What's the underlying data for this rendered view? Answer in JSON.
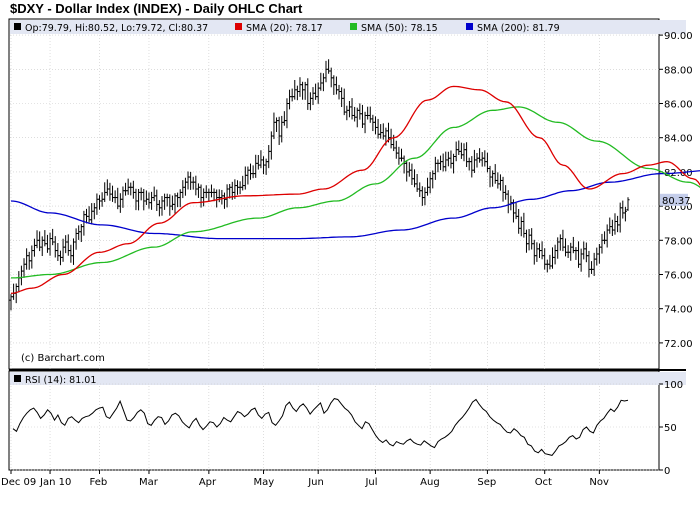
{
  "title": "$DXY - Dollar Index (INDEX) - Daily OHLC Chart",
  "watermark": "(c) Barchart.com",
  "legend": {
    "ohlc": "Op:79.79, Hi:80.52, Lo:79.72, Cl:80.37",
    "sma20": "SMA (20): 78.17",
    "sma50": "SMA (50): 78.15",
    "sma200": "SMA (200): 81.79",
    "rsi": "RSI (14): 81.01"
  },
  "colors": {
    "price": "#000000",
    "sma20": "#dd0000",
    "sma50": "#22bb22",
    "sma200": "#0000cc",
    "last_price_box": "#c4cdea",
    "legend_bar": "#e3e7f3"
  },
  "last_price_label": "80.37",
  "chart_data": [
    {
      "type": "ohlc",
      "title": "$DXY - Dollar Index (INDEX) - Daily OHLC Chart",
      "x_labels": [
        "Dec 09",
        "Jan 10",
        "Feb",
        "Mar",
        "Apr",
        "May",
        "Jun",
        "Jul",
        "Aug",
        "Sep",
        "Oct",
        "Nov"
      ],
      "ylim": [
        71,
        91
      ],
      "y_ticks": [
        "90.00",
        "88.00",
        "86.00",
        "84.00",
        "82.00",
        "80.00",
        "78.00",
        "76.00",
        "74.00",
        "72.00"
      ],
      "grid": true,
      "close_series": [
        {
          "month": "Dec 09",
          "values": [
            74.7,
            74.9,
            75.3,
            75.8,
            76.2,
            76.6,
            77.1,
            76.8,
            77.4,
            77.7,
            78.0,
            77.6,
            78.0,
            77.8,
            77.5
          ]
        },
        {
          "month": "Jan 10",
          "values": [
            78.1,
            77.9,
            77.4,
            77.1,
            77.0,
            77.6,
            77.9,
            77.4,
            77.1,
            77.9,
            78.4,
            78.5,
            78.8,
            79.5,
            79.4,
            79.2,
            79.7,
            79.9,
            80.4
          ]
        },
        {
          "month": "Feb",
          "values": [
            80.3,
            80.4,
            80.8,
            81.0,
            80.7,
            80.5,
            80.5,
            80.0,
            80.4,
            80.9,
            80.9,
            81.1,
            81.1,
            80.8,
            80.3,
            80.8,
            80.8,
            80.3,
            80.4
          ]
        },
        {
          "month": "Mar",
          "values": [
            80.2,
            80.5,
            80.6,
            80.1,
            79.9,
            80.3,
            80.5,
            80.5,
            80.0,
            80.1,
            80.6,
            80.5,
            80.8,
            81.1,
            81.4,
            81.7,
            81.4,
            81.4,
            81.0,
            81.1,
            80.5,
            80.8,
            80.8
          ]
        },
        {
          "month": "Apr",
          "values": [
            80.8,
            80.8,
            80.8,
            80.5,
            80.5,
            80.6,
            80.4,
            81.0,
            81.1,
            80.8,
            81.2,
            81.1,
            81.1,
            81.2,
            81.8,
            82.1,
            81.9,
            81.9,
            82.5,
            82.4,
            82.7
          ]
        },
        {
          "month": "May",
          "values": [
            82.4,
            82.6,
            83.2,
            84.1,
            84.9,
            85.0,
            84.1,
            84.9,
            85.0,
            86.0,
            86.4,
            86.4,
            86.8,
            86.7,
            87.1,
            86.8,
            87.1,
            86.0,
            86.3,
            86.6,
            86.4
          ]
        },
        {
          "month": "Jun",
          "values": [
            86.9,
            87.2,
            87.5,
            88.0,
            87.9,
            87.5,
            87.1,
            86.8,
            86.7,
            86.3,
            85.5,
            85.6,
            85.8,
            85.3,
            85.2,
            85.6,
            85.4,
            84.8,
            85.3,
            85.3,
            85.1,
            84.9
          ]
        },
        {
          "month": "Jul",
          "values": [
            84.6,
            84.2,
            84.3,
            84.1,
            84.4,
            84.0,
            83.6,
            83.4,
            83.1,
            82.8,
            82.8,
            82.5,
            82.0,
            82.1,
            81.6,
            81.3,
            81.0,
            80.9,
            80.5,
            80.8,
            81.1
          ]
        },
        {
          "month": "Aug",
          "values": [
            81.6,
            81.9,
            82.5,
            82.5,
            82.6,
            82.3,
            82.7,
            82.8,
            82.5,
            82.9,
            83.3,
            83.2,
            83.0,
            83.3,
            82.6,
            82.6,
            82.1,
            82.7,
            82.8,
            82.7,
            82.8,
            82.6
          ]
        },
        {
          "month": "Sep",
          "values": [
            82.2,
            81.7,
            81.9,
            81.5,
            81.3,
            81.5,
            80.8,
            80.7,
            80.1,
            80.2,
            79.6,
            79.4,
            78.7,
            79.1,
            78.4,
            77.8,
            78.3,
            77.8,
            77.1,
            77.5,
            77.4,
            77.1
          ]
        },
        {
          "month": "Oct",
          "values": [
            76.6,
            76.6,
            76.5,
            77.0,
            77.4,
            77.9,
            78.1,
            77.6,
            77.3,
            77.3,
            77.6,
            77.4,
            77.4,
            76.6,
            77.2,
            77.5,
            77.1,
            76.3,
            76.3,
            76.9,
            77.2
          ]
        },
        {
          "month": "Nov",
          "values": [
            77.6,
            78.0,
            78.0,
            78.6,
            78.8,
            78.6,
            79.1,
            78.9,
            79.9,
            79.6,
            79.7,
            80.37
          ]
        }
      ],
      "last_bar": {
        "open": 79.79,
        "high": 80.52,
        "low": 79.72,
        "close": 80.37
      },
      "series": [
        {
          "name": "SMA (20)",
          "color": "#dd0000",
          "points": [
            [
              0,
              74.9
            ],
            [
              8,
              75.2
            ],
            [
              20,
              76.0
            ],
            [
              34,
              77.3
            ],
            [
              45,
              77.8
            ],
            [
              57,
              79.0
            ],
            [
              70,
              80.2
            ],
            [
              90,
              80.6
            ],
            [
              110,
              80.7
            ],
            [
              120,
              81.0
            ],
            [
              135,
              82.1
            ],
            [
              147,
              84.0
            ],
            [
              160,
              86.2
            ],
            [
              170,
              87.0
            ],
            [
              180,
              86.8
            ],
            [
              190,
              86.1
            ],
            [
              203,
              84.0
            ],
            [
              212,
              82.4
            ],
            [
              222,
              81.0
            ],
            [
              235,
              81.9
            ],
            [
              245,
              82.4
            ],
            [
              252,
              82.6
            ],
            [
              262,
              81.6
            ],
            [
              272,
              79.5
            ],
            [
              283,
              77.8
            ],
            [
              293,
              77.2
            ],
            [
              303,
              77.0
            ],
            [
              312,
              77.4
            ],
            [
              323,
              78.17
            ]
          ]
        },
        {
          "name": "SMA (50)",
          "color": "#22bb22",
          "points": [
            [
              0,
              75.8
            ],
            [
              15,
              76.0
            ],
            [
              35,
              76.7
            ],
            [
              55,
              77.6
            ],
            [
              70,
              78.5
            ],
            [
              95,
              79.3
            ],
            [
              110,
              79.9
            ],
            [
              125,
              80.3
            ],
            [
              140,
              81.3
            ],
            [
              155,
              82.8
            ],
            [
              170,
              84.6
            ],
            [
              185,
              85.6
            ],
            [
              195,
              85.8
            ],
            [
              210,
              84.9
            ],
            [
              225,
              83.8
            ],
            [
              245,
              82.2
            ],
            [
              260,
              81.4
            ],
            [
              272,
              80.5
            ],
            [
              285,
              79.4
            ],
            [
              295,
              78.8
            ],
            [
              305,
              78.4
            ],
            [
              315,
              78.0
            ],
            [
              323,
              78.15
            ]
          ]
        },
        {
          "name": "SMA (200)",
          "color": "#0000cc",
          "points": [
            [
              0,
              80.3
            ],
            [
              15,
              79.6
            ],
            [
              35,
              78.9
            ],
            [
              55,
              78.4
            ],
            [
              80,
              78.1
            ],
            [
              110,
              78.1
            ],
            [
              130,
              78.2
            ],
            [
              150,
              78.6
            ],
            [
              170,
              79.3
            ],
            [
              185,
              79.9
            ],
            [
              200,
              80.4
            ],
            [
              215,
              80.9
            ],
            [
              230,
              81.4
            ],
            [
              250,
              81.9
            ],
            [
              270,
              82.1
            ],
            [
              290,
              82.0
            ],
            [
              310,
              81.9
            ],
            [
              323,
              81.79
            ]
          ]
        }
      ]
    },
    {
      "type": "line",
      "title": "RSI (14): 81.01",
      "x_labels": [
        "Dec 09",
        "Jan 10",
        "Feb",
        "Mar",
        "Apr",
        "May",
        "Jun",
        "Jul",
        "Aug",
        "Sep",
        "Oct",
        "Nov"
      ],
      "ylim": [
        0,
        100
      ],
      "y_ticks": [
        "100",
        "50",
        "0"
      ],
      "grid": true,
      "last_value": 81.01,
      "series": [
        {
          "name": "RSI (14)",
          "color": "#000000",
          "values": [
            48,
            45,
            54,
            61,
            66,
            70,
            72,
            67,
            60,
            64,
            70,
            66,
            58,
            64,
            55,
            52,
            60,
            62,
            58,
            55,
            60,
            62,
            63,
            66,
            70,
            72,
            73,
            62,
            60,
            66,
            72,
            80,
            69,
            58,
            57,
            61,
            67,
            70,
            66,
            54,
            52,
            58,
            62,
            61,
            53,
            57,
            64,
            66,
            63,
            56,
            52,
            49,
            56,
            60,
            52,
            47,
            51,
            56,
            55,
            50,
            54,
            61,
            58,
            56,
            62,
            68,
            66,
            62,
            65,
            70,
            72,
            64,
            60,
            65,
            67,
            55,
            52,
            57,
            63,
            75,
            79,
            72,
            68,
            74,
            77,
            72,
            65,
            70,
            74,
            78,
            66,
            70,
            78,
            83,
            82,
            77,
            72,
            69,
            64,
            56,
            52,
            48,
            56,
            54,
            47,
            40,
            35,
            32,
            35,
            30,
            28,
            33,
            31,
            30,
            34,
            36,
            32,
            30,
            29,
            34,
            31,
            28,
            26,
            33,
            36,
            38,
            41,
            45,
            52,
            57,
            61,
            66,
            72,
            79,
            82,
            76,
            71,
            68,
            62,
            58,
            55,
            53,
            48,
            44,
            43,
            48,
            45,
            40,
            38,
            30,
            28,
            22,
            20,
            24,
            19,
            18,
            17,
            22,
            28,
            30,
            33,
            38,
            40,
            36,
            38,
            47,
            50,
            45,
            43,
            52,
            57,
            60,
            66,
            71,
            68,
            73,
            81,
            80.2,
            81.01
          ]
        }
      ]
    }
  ]
}
